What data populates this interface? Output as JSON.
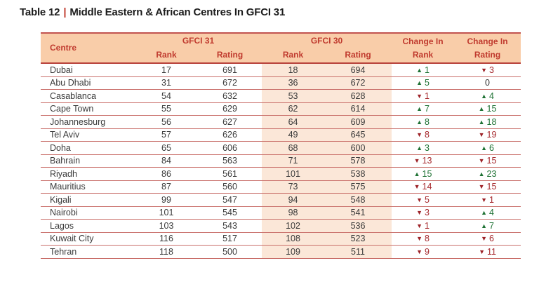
{
  "title": {
    "prefix": "Table 12",
    "separator": "|",
    "text": "Middle Eastern & African Centres In GFCI 31"
  },
  "icons": {
    "up_arrow": "▲",
    "down_arrow": "▼"
  },
  "colors": {
    "header_bg": "#F9CDA9",
    "gfci30_band_bg": "#FBE7D8",
    "header_text": "#C03A2E",
    "row_line": "#C96F6A",
    "table_border": "#C2534F",
    "title_separator": "#C0392B",
    "positive_change": "#1E7234",
    "negative_change": "#A6292D",
    "body_text": "#3A3A3A"
  },
  "table": {
    "header": {
      "centre": "Centre",
      "gfci31": "GFCI 31",
      "gfci30": "GFCI 30",
      "sub_rank_31": "Rank",
      "sub_rating_31": "Rating",
      "sub_rank_30": "Rank",
      "sub_rating_30": "Rating",
      "change_rank": {
        "line1": "Change In",
        "line2": "Rank"
      },
      "change_rating": {
        "line1": "Change In",
        "line2": "Rating"
      }
    },
    "rows": [
      {
        "centre": "Dubai",
        "gfci31_rank": "17",
        "gfci31_rating": "691",
        "gfci30_rank": "18",
        "gfci30_rating": "694",
        "change_rank": {
          "dir": "up",
          "value": "1"
        },
        "change_rating": {
          "dir": "down",
          "value": "3"
        }
      },
      {
        "centre": "Abu Dhabi",
        "gfci31_rank": "31",
        "gfci31_rating": "672",
        "gfci30_rank": "36",
        "gfci30_rating": "672",
        "change_rank": {
          "dir": "up",
          "value": "5"
        },
        "change_rating": {
          "dir": "none",
          "value": "0"
        }
      },
      {
        "centre": "Casablanca",
        "gfci31_rank": "54",
        "gfci31_rating": "632",
        "gfci30_rank": "53",
        "gfci30_rating": "628",
        "change_rank": {
          "dir": "down",
          "value": "1"
        },
        "change_rating": {
          "dir": "up",
          "value": "4"
        }
      },
      {
        "centre": "Cape Town",
        "gfci31_rank": "55",
        "gfci31_rating": "629",
        "gfci30_rank": "62",
        "gfci30_rating": "614",
        "change_rank": {
          "dir": "up",
          "value": "7"
        },
        "change_rating": {
          "dir": "up",
          "value": "15"
        }
      },
      {
        "centre": "Johannesburg",
        "gfci31_rank": "56",
        "gfci31_rating": "627",
        "gfci30_rank": "64",
        "gfci30_rating": "609",
        "change_rank": {
          "dir": "up",
          "value": "8"
        },
        "change_rating": {
          "dir": "up",
          "value": "18"
        }
      },
      {
        "centre": "Tel Aviv",
        "gfci31_rank": "57",
        "gfci31_rating": "626",
        "gfci30_rank": "49",
        "gfci30_rating": "645",
        "change_rank": {
          "dir": "down",
          "value": "8"
        },
        "change_rating": {
          "dir": "down",
          "value": "19"
        }
      },
      {
        "centre": "Doha",
        "gfci31_rank": "65",
        "gfci31_rating": "606",
        "gfci30_rank": "68",
        "gfci30_rating": "600",
        "change_rank": {
          "dir": "up",
          "value": "3"
        },
        "change_rating": {
          "dir": "up",
          "value": "6"
        }
      },
      {
        "centre": "Bahrain",
        "gfci31_rank": "84",
        "gfci31_rating": "563",
        "gfci30_rank": "71",
        "gfci30_rating": "578",
        "change_rank": {
          "dir": "down",
          "value": "13"
        },
        "change_rating": {
          "dir": "down",
          "value": "15"
        }
      },
      {
        "centre": "Riyadh",
        "gfci31_rank": "86",
        "gfci31_rating": "561",
        "gfci30_rank": "101",
        "gfci30_rating": "538",
        "change_rank": {
          "dir": "up",
          "value": "15"
        },
        "change_rating": {
          "dir": "up",
          "value": "23"
        }
      },
      {
        "centre": "Mauritius",
        "gfci31_rank": "87",
        "gfci31_rating": "560",
        "gfci30_rank": "73",
        "gfci30_rating": "575",
        "change_rank": {
          "dir": "down",
          "value": "14"
        },
        "change_rating": {
          "dir": "down",
          "value": "15"
        }
      },
      {
        "centre": "Kigali",
        "gfci31_rank": "99",
        "gfci31_rating": "547",
        "gfci30_rank": "94",
        "gfci30_rating": "548",
        "change_rank": {
          "dir": "down",
          "value": "5"
        },
        "change_rating": {
          "dir": "down",
          "value": "1"
        }
      },
      {
        "centre": "Nairobi",
        "gfci31_rank": "101",
        "gfci31_rating": "545",
        "gfci30_rank": "98",
        "gfci30_rating": "541",
        "change_rank": {
          "dir": "down",
          "value": "3"
        },
        "change_rating": {
          "dir": "up",
          "value": "4"
        }
      },
      {
        "centre": "Lagos",
        "gfci31_rank": "103",
        "gfci31_rating": "543",
        "gfci30_rank": "102",
        "gfci30_rating": "536",
        "change_rank": {
          "dir": "down",
          "value": "1"
        },
        "change_rating": {
          "dir": "up",
          "value": "7"
        }
      },
      {
        "centre": "Kuwait City",
        "gfci31_rank": "116",
        "gfci31_rating": "517",
        "gfci30_rank": "108",
        "gfci30_rating": "523",
        "change_rank": {
          "dir": "down",
          "value": "8"
        },
        "change_rating": {
          "dir": "down",
          "value": "6"
        }
      },
      {
        "centre": "Tehran",
        "gfci31_rank": "118",
        "gfci31_rating": "500",
        "gfci30_rank": "109",
        "gfci30_rating": "511",
        "change_rank": {
          "dir": "down",
          "value": "9"
        },
        "change_rating": {
          "dir": "down",
          "value": "11"
        }
      }
    ]
  }
}
